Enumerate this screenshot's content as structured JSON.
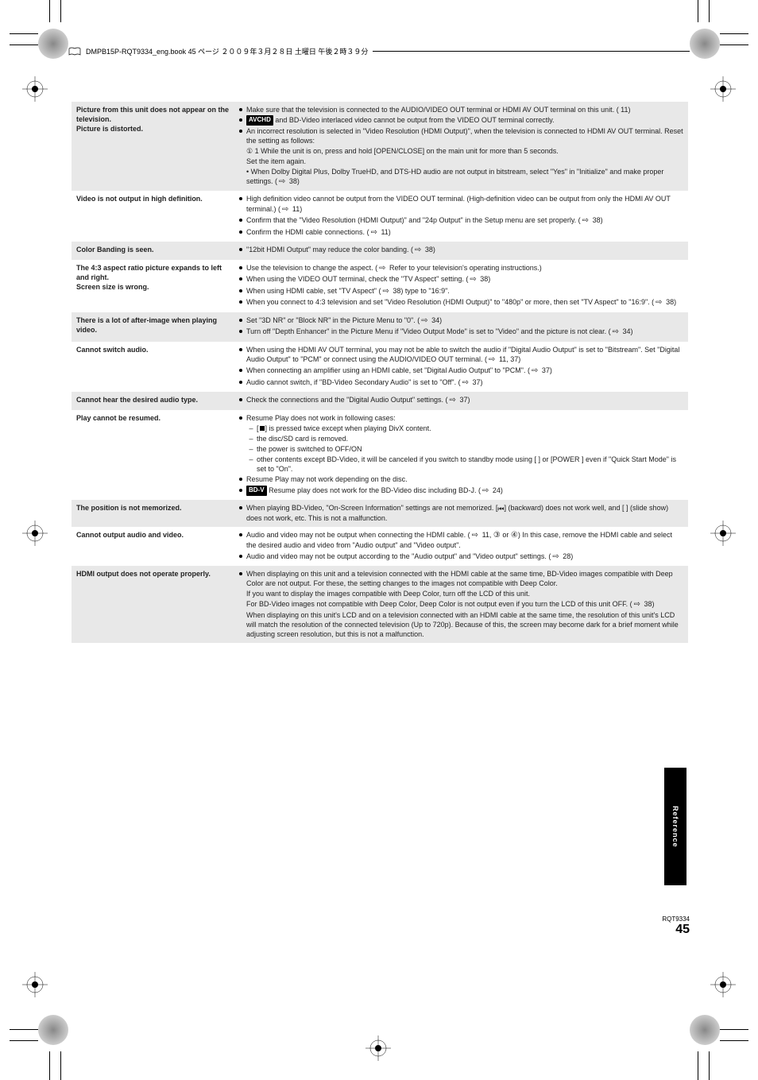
{
  "bookpath": "DMPB15P-RQT9334_eng.book  45 ページ  ２００９年３月２８日  土曜日  午後２時３９分",
  "rows": [
    {
      "bg": "gray",
      "left": "Picture from this unit does not appear on the television.\nPicture is distorted.",
      "items": [
        {
          "type": "bullet",
          "pre": "Make sure that the television is connected to the AUDIO/VIDEO OUT terminal or HDMI AV OUT terminal on this unit. (",
          "badge": "",
          "post": " 11)"
        },
        {
          "type": "bullet",
          "pre": "",
          "badge": "AVCHD",
          "post": " and BD-Video interlaced video cannot be output from the VIDEO OUT terminal correctly."
        },
        {
          "type": "bullet",
          "text": "An incorrect resolution is selected in \"Video Resolution (HDMI Output)\", when the television is connected to HDMI AV OUT terminal. Reset the setting as follows:"
        }
      ],
      "trailing": [
        {
          "type": "num",
          "text": "1 While the unit is on, press and hold [OPEN/CLOSE] on the main unit for more than 5 seconds.\nSet the item again."
        },
        {
          "type": "num",
          "text": "When Dolby Digital Plus, Dolby TrueHD, and DTS-HD audio are not output in bitstream, select \"Yes\" in \"Initialize\" and make proper settings. (⇨ 38)"
        }
      ]
    },
    {
      "bg": "white",
      "left": "Video is not output in high definition.",
      "items": [
        {
          "type": "bullet",
          "text": "High definition video cannot be output from the VIDEO OUT terminal. (High-definition video can be output from only the HDMI AV OUT terminal.) (⇨ 11)"
        },
        {
          "type": "bullet",
          "text": "Confirm that the \"Video Resolution (HDMI Output)\" and \"24p Output\" in the Setup menu are set properly. (⇨ 38)"
        },
        {
          "type": "bullet",
          "text": "Confirm the HDMI cable connections. (⇨ 11)"
        }
      ]
    },
    {
      "bg": "gray",
      "left": "Color Banding is seen.",
      "items": [
        {
          "type": "bullet",
          "text": "\"12bit HDMI Output\" may reduce the color banding. (⇨ 38)"
        }
      ]
    },
    {
      "bg": "white",
      "left": "The 4:3 aspect ratio picture expands to left and right.\nScreen size is wrong.",
      "items": [
        {
          "type": "bullet",
          "text": "Use the television to change the aspect. (⇨ Refer to your television's operating instructions.)"
        },
        {
          "type": "bullet",
          "text": "When using the VIDEO OUT terminal, check the \"TV Aspect\" setting. (⇨ 38)"
        },
        {
          "type": "bullet",
          "text": "When using HDMI cable, set \"TV Aspect\" (⇨ 38) type to \"16:9\"."
        },
        {
          "type": "bullet",
          "text": "When you connect to 4:3 television and set \"Video Resolution (HDMI Output)\" to \"480p\" or more, then set \"TV Aspect\" to \"16:9\". (⇨ 38)"
        }
      ]
    },
    {
      "bg": "gray",
      "left": "There is a lot of after-image when playing video.",
      "items": [
        {
          "type": "bullet",
          "text": "Set \"3D NR\" or \"Block NR\" in the Picture Menu to \"0\". (⇨ 34)"
        },
        {
          "type": "bullet",
          "text": "Turn off \"Depth Enhancer\" in the Picture Menu if \"Video Output Mode\" is set to \"Video\" and the picture is not clear. (⇨ 34)"
        }
      ]
    },
    {
      "bg": "white",
      "left": "Cannot switch audio.",
      "items": [
        {
          "type": "bullet",
          "text": "When using the HDMI AV OUT terminal, you may not be able to switch the audio if \"Digital Audio Output\" is set to \"Bitstream\". Set \"Digital Audio Output\" to \"PCM\" or connect using the AUDIO/VIDEO OUT terminal. (⇨ 11, 37)"
        },
        {
          "type": "bullet",
          "text": "When connecting an amplifier using an HDMI cable, set \"Digital Audio Output\" to \"PCM\". (⇨ 37)"
        },
        {
          "type": "bullet",
          "text": "Audio cannot switch, if \"BD-Video Secondary Audio\" is set to \"Off\". (⇨ 37)"
        }
      ]
    },
    {
      "bg": "gray",
      "left": "Cannot hear the desired audio type.",
      "items": [
        {
          "type": "bullet",
          "text": "Check the connections and the \"Digital Audio Output\" settings. (⇨ 37)"
        }
      ]
    },
    {
      "bg": "white",
      "left": "Play cannot be resumed.",
      "items": [
        {
          "type": "bullet",
          "text": "Resume Play does not work in following cases:"
        },
        {
          "type": "dash",
          "sq": true,
          "text": "[■] is pressed twice except when playing DivX content."
        },
        {
          "type": "dash",
          "text": "the disc/SD card is removed."
        },
        {
          "type": "dash",
          "text": "the power is switched to OFF/ON"
        },
        {
          "type": "dash",
          "text": "other contents except BD-Video, it will be canceled if you switch to standby mode using [ ] or [POWER  ] even if \"Quick Start Mode\" is set to \"On\"."
        },
        {
          "type": "bullet",
          "text": "Resume Play may not work depending on the disc."
        },
        {
          "type": "bullet",
          "badge": "BD-V",
          "text": " Resume play does not work for the BD-Video disc including BD-J. (⇨ 24)"
        }
      ]
    },
    {
      "bg": "gray",
      "left": "The position is not memorized.",
      "items": [
        {
          "type": "bullet",
          "text": "When playing BD-Video, \"On-Screen Information\" settings are not memorized. [⏮] (backward) does not work well, and [ ] (slide show) does not work, etc. This is not a malfunction."
        }
      ]
    },
    {
      "bg": "white",
      "left": "Cannot output audio and video.",
      "items": [
        {
          "type": "bullet",
          "text": "Audio and video may not be output when connecting the HDMI cable. (⇨ 11, ③ or ④) In this case, remove the HDMI cable and select the desired audio and video from \"Audio output\" and \"Video output\"."
        },
        {
          "type": "bullet",
          "text": "Audio and video may not be output according to the \"Audio output\" and \"Video output\" settings. (⇨ 28)"
        }
      ]
    },
    {
      "bg": "gray",
      "left": "HDMI output does not operate properly.",
      "items": [
        {
          "type": "bullet",
          "text": "When displaying on this unit and a television connected with the HDMI cable at the same time, BD-Video images compatible with Deep Color are not output. For these, the setting changes to the images not compatible with Deep Color."
        },
        {
          "type": "plain",
          "text": "If you want to display the images compatible with Deep Color, turn off the LCD of this unit.\nFor BD-Video images not compatible with Deep Color, Deep Color is not output even if you turn the LCD of this unit OFF. (⇨ 38)"
        },
        {
          "type": "plain",
          "text": "When displaying on this unit's LCD and on a television connected with an HDMI cable at the same time, the resolution of this unit's LCD will match the resolution of the connected television (Up to 720p). Because of this, the screen may become dark for a brief moment while adjusting screen resolution, but this is not a malfunction."
        }
      ]
    }
  ],
  "sidebar": "Reference",
  "footer_rqt": "RQT9334",
  "footer_pn": "45",
  "colors": {
    "gray_row": "#e8e8e8",
    "white_row": "#ffffff",
    "text": "#222222",
    "black": "#000000"
  }
}
